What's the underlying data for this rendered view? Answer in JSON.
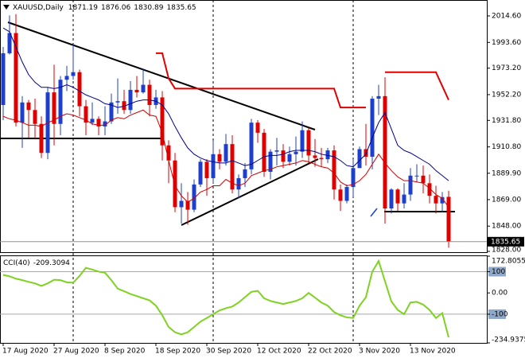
{
  "chart_data": [
    {
      "type": "candlestick",
      "title": "XAUUSD,Daily",
      "categories": [
        "17 Aug 2020",
        null,
        null,
        null,
        null,
        null,
        null,
        null,
        "27 Aug 2020",
        null,
        null,
        null,
        null,
        null,
        null,
        null,
        "8 Sep 2020",
        null,
        null,
        null,
        null,
        null,
        null,
        null,
        "18 Sep 2020",
        null,
        null,
        null,
        null,
        null,
        null,
        null,
        "30 Sep 2020",
        null,
        null,
        null,
        null,
        null,
        null,
        null,
        "12 Oct 2020",
        null,
        null,
        null,
        null,
        null,
        null,
        null,
        "22 Oct 2020",
        null,
        null,
        null,
        null,
        null,
        null,
        null,
        "3 Nov 2020",
        null,
        null,
        null,
        null,
        null,
        null,
        null,
        "13 Nov 2020",
        null,
        null,
        null,
        null,
        null,
        null
      ],
      "open": [
        1944,
        1985,
        2001,
        1930,
        1946,
        1940,
        1929,
        1906,
        1954,
        1929,
        1964,
        1967,
        1970,
        1943,
        1930,
        1933,
        1927,
        1931,
        1946,
        1947,
        1940,
        1956,
        1954,
        1960,
        1944,
        1950,
        1912,
        1900,
        1863,
        1868,
        1861,
        1881,
        1899,
        1886,
        1905,
        1899,
        1913,
        1877,
        1886,
        1893,
        1930,
        1922,
        1891,
        1907,
        1908,
        1899,
        1905,
        1907,
        1924,
        1904,
        1902,
        1901,
        1908,
        1877,
        1868,
        1879,
        1894,
        1909,
        1903,
        1949,
        1951,
        1862,
        1877,
        1866,
        1873,
        1888,
        1888,
        1882,
        1872,
        1866,
        1871.19
      ],
      "high": [
        1990,
        2015,
        2016,
        1951,
        1948,
        1949,
        1935,
        1958,
        1976,
        1967,
        1975,
        1992,
        1972,
        1948,
        1946,
        1935,
        1943,
        1953,
        1965,
        1956,
        1963,
        1967,
        1973,
        1964,
        1956,
        1955,
        1916,
        1906,
        1882,
        1875,
        1885,
        1901,
        1901,
        1916,
        1909,
        1921,
        1920,
        1889,
        1898,
        1933,
        1932,
        1925,
        1909,
        1918,
        1913,
        1911,
        1919,
        1931,
        1926,
        1917,
        1910,
        1910,
        1912,
        1881,
        1881,
        1901,
        1911,
        1929,
        1951,
        1960,
        1966,
        1878,
        1878,
        1882,
        1894,
        1897,
        1896,
        1889,
        1880,
        1875,
        1876.06
      ],
      "low": [
        1932,
        1984,
        1927,
        1910,
        1918,
        1917,
        1902,
        1901,
        1912,
        1920,
        1955,
        1964,
        1935,
        1920,
        1928,
        1920,
        1920,
        1929,
        1937,
        1937,
        1937,
        1950,
        1953,
        1935,
        1941,
        1900,
        1882,
        1859,
        1850,
        1849,
        1859,
        1879,
        1872,
        1882,
        1893,
        1896,
        1874,
        1870,
        1879,
        1889,
        1914,
        1887,
        1885,
        1896,
        1894,
        1896,
        1896,
        1902,
        1898,
        1895,
        1895,
        1898,
        1869,
        1860,
        1866,
        1871,
        1894,
        1896,
        1893,
        1936,
        1850,
        1858,
        1860,
        1862,
        1868,
        1883,
        1874,
        1866,
        1858,
        1859,
        1830.89
      ],
      "close": [
        1985,
        2001,
        1930,
        1946,
        1940,
        1929,
        1906,
        1954,
        1929,
        1964,
        1967,
        1970,
        1943,
        1930,
        1933,
        1927,
        1931,
        1946,
        1947,
        1940,
        1956,
        1954,
        1960,
        1944,
        1950,
        1912,
        1900,
        1863,
        1868,
        1861,
        1881,
        1899,
        1886,
        1905,
        1899,
        1913,
        1877,
        1886,
        1893,
        1930,
        1922,
        1891,
        1907,
        1908,
        1899,
        1905,
        1907,
        1924,
        1904,
        1902,
        1901,
        1908,
        1877,
        1868,
        1879,
        1894,
        1909,
        1903,
        1949,
        1951,
        1862,
        1877,
        1866,
        1873,
        1888,
        1888,
        1882,
        1872,
        1866,
        1871,
        1835.65
      ],
      "up_color": "#1c3fd0",
      "down_color": "#e00000",
      "lines": [
        {
          "color": "#00008b",
          "values": [
            2005,
            2002,
            1990,
            1978,
            1968,
            1962,
            1958,
            1958,
            1957,
            1958,
            1960,
            1958,
            1955,
            1952,
            1950,
            1948,
            1945,
            1944,
            1942,
            1943,
            1945,
            1947,
            1948,
            1948,
            1947,
            1944,
            1937,
            1927,
            1918,
            1910,
            1905,
            1902,
            1900,
            1899,
            1898,
            1898,
            1900,
            1898,
            1896,
            1897,
            1900,
            1903,
            1904,
            1904,
            1905,
            1907,
            1908,
            1908,
            1908,
            1907,
            1905,
            1904,
            1903,
            1900,
            1896,
            1895,
            1900,
            1905,
            1918,
            1930,
            1938,
            1925,
            1912,
            1908,
            1906,
            1903,
            1900,
            1897,
            1892,
            1888,
            1884
          ]
        },
        {
          "color": "#d00000",
          "values": [
            1935,
            1933,
            1932,
            1930,
            1928,
            1928,
            1927,
            1930,
            1932,
            1935,
            1937,
            1936,
            1934,
            1932,
            1929,
            1928,
            1928,
            1932,
            1934,
            1933,
            1936,
            1938,
            1940,
            1936,
            1935,
            1922,
            1900,
            1880,
            1872,
            1867,
            1870,
            1875,
            1877,
            1880,
            1880,
            1885,
            1882,
            1880,
            1882,
            1888,
            1890,
            1892,
            1893,
            1895,
            1896,
            1897,
            1898,
            1900,
            1899,
            1897,
            1895,
            1894,
            1890,
            1883,
            1880,
            1881,
            1884,
            1889,
            1897,
            1905,
            1898,
            1892,
            1887,
            1884,
            1884,
            1883,
            1882,
            1878,
            1873,
            1870,
            1863
          ]
        },
        {
          "color": "#e00000",
          "width": 2,
          "values": [
            null,
            null,
            null,
            null,
            null,
            null,
            null,
            null,
            null,
            null,
            null,
            null,
            null,
            null,
            null,
            null,
            null,
            null,
            null,
            null,
            null,
            null,
            null,
            null,
            1985,
            1985,
            1965,
            1957,
            1957,
            1957,
            1957,
            1957,
            1957,
            1957,
            1957,
            1957,
            1957,
            1957,
            1957,
            1957,
            1957,
            1957,
            1957,
            1957,
            1957,
            1957,
            1957,
            1957,
            1957,
            1957,
            1957,
            1957,
            1957,
            1942,
            1942,
            1942,
            1942,
            1942,
            null,
            null,
            1970,
            1970,
            1970,
            1970,
            1970,
            1970,
            1970,
            1970,
            1970,
            1959,
            1948
          ]
        }
      ],
      "ylim": [
        1826.7,
        2027.2
      ],
      "yticks": [
        {
          "value": 2014.6,
          "label": "2014.60"
        },
        {
          "value": 1993.6,
          "label": "1993.60"
        },
        {
          "value": 1973.2,
          "label": "1973.20"
        },
        {
          "value": 1952.2,
          "label": "1952.20"
        },
        {
          "value": 1931.8,
          "label": "1931.80"
        },
        {
          "value": 1910.8,
          "label": "1910.80"
        },
        {
          "value": 1889.9,
          "label": "1889.90"
        },
        {
          "value": 1869,
          "label": "1869.00"
        },
        {
          "value": 1848,
          "label": "1848.00"
        },
        {
          "value": 1828,
          "label": "1828.00"
        }
      ]
    },
    {
      "type": "line",
      "title": "CCI(40)",
      "color": "#7ed321",
      "values": [
        85,
        78,
        67,
        60,
        52,
        45,
        33,
        45,
        62,
        60,
        50,
        48,
        80,
        118,
        110,
        100,
        95,
        60,
        20,
        8,
        -5,
        -15,
        -25,
        -35,
        -60,
        -105,
        -160,
        -185,
        -195,
        -185,
        -160,
        -135,
        -118,
        -100,
        -82,
        -72,
        -64,
        -45,
        -20,
        5,
        10,
        -25,
        -38,
        -45,
        -52,
        -45,
        -38,
        -25,
        0,
        -22,
        -45,
        -60,
        -90,
        -105,
        -115,
        -118,
        -60,
        -20,
        100,
        150,
        55,
        -40,
        -80,
        -100,
        -45,
        -42,
        -55,
        -80,
        -118,
        -95,
        -209.3094
      ],
      "levels": [
        100,
        -100
      ],
      "ylim": [
        -234.9375,
        172.8055
      ],
      "yticks": [
        172.8055,
        100,
        {
          "value": 0,
          "label": "0.00"
        },
        -100,
        -234.9375
      ]
    }
  ]
}
